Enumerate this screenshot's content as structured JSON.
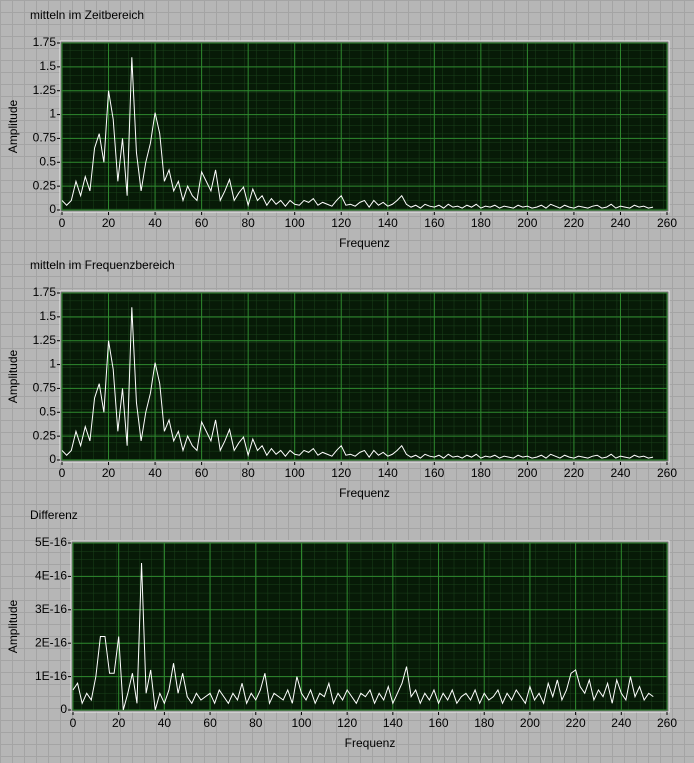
{
  "chart_data": [
    {
      "type": "line",
      "title": "mitteln im Zeitbereich",
      "x_label": "Frequenz",
      "y_label": "Amplitude",
      "color": "#ffffff",
      "grid": true,
      "x": [
        0,
        2,
        4,
        6,
        8,
        10,
        12,
        14,
        16,
        18,
        20,
        22,
        24,
        26,
        28,
        30,
        32,
        34,
        36,
        38,
        40,
        42,
        44,
        46,
        48,
        50,
        52,
        54,
        56,
        58,
        60,
        62,
        64,
        66,
        68,
        70,
        72,
        74,
        76,
        78,
        80,
        82,
        84,
        86,
        88,
        90,
        92,
        94,
        96,
        98,
        100,
        102,
        104,
        106,
        108,
        110,
        112,
        114,
        116,
        118,
        120,
        122,
        124,
        126,
        128,
        130,
        132,
        134,
        136,
        138,
        140,
        142,
        144,
        146,
        148,
        150,
        152,
        154,
        156,
        158,
        160,
        162,
        164,
        166,
        168,
        170,
        172,
        174,
        176,
        178,
        180,
        182,
        184,
        186,
        188,
        190,
        192,
        194,
        196,
        198,
        200,
        202,
        204,
        206,
        208,
        210,
        212,
        214,
        216,
        218,
        220,
        222,
        224,
        226,
        228,
        230,
        232,
        234,
        236,
        238,
        240,
        242,
        244,
        246,
        248,
        250,
        252,
        254
      ],
      "values": [
        0.1,
        0.05,
        0.1,
        0.3,
        0.15,
        0.35,
        0.2,
        0.65,
        0.8,
        0.5,
        1.25,
        0.95,
        0.3,
        0.75,
        0.15,
        1.6,
        0.6,
        0.2,
        0.5,
        0.7,
        1.02,
        0.8,
        0.3,
        0.42,
        0.2,
        0.3,
        0.1,
        0.25,
        0.15,
        0.1,
        0.4,
        0.3,
        0.2,
        0.42,
        0.1,
        0.2,
        0.32,
        0.1,
        0.18,
        0.24,
        0.05,
        0.22,
        0.1,
        0.15,
        0.05,
        0.12,
        0.06,
        0.1,
        0.04,
        0.1,
        0.06,
        0.05,
        0.1,
        0.08,
        0.12,
        0.05,
        0.08,
        0.06,
        0.04,
        0.1,
        0.15,
        0.05,
        0.06,
        0.04,
        0.08,
        0.1,
        0.03,
        0.1,
        0.05,
        0.08,
        0.04,
        0.06,
        0.1,
        0.15,
        0.06,
        0.03,
        0.05,
        0.02,
        0.06,
        0.04,
        0.03,
        0.05,
        0.02,
        0.06,
        0.03,
        0.04,
        0.02,
        0.05,
        0.03,
        0.06,
        0.02,
        0.04,
        0.03,
        0.05,
        0.02,
        0.04,
        0.03,
        0.02,
        0.05,
        0.03,
        0.04,
        0.02,
        0.03,
        0.05,
        0.02,
        0.06,
        0.04,
        0.02,
        0.05,
        0.03,
        0.02,
        0.04,
        0.03,
        0.02,
        0.04,
        0.05,
        0.02,
        0.03,
        0.06,
        0.02,
        0.04,
        0.03,
        0.02,
        0.05,
        0.03,
        0.04,
        0.02,
        0.03
      ],
      "xlim": [
        0,
        260
      ],
      "xticks": [
        0,
        20,
        40,
        60,
        80,
        100,
        120,
        140,
        160,
        180,
        200,
        220,
        240,
        260
      ],
      "ylim": [
        0,
        1.75
      ],
      "yticks": [
        0,
        0.25,
        0.5,
        0.75,
        1,
        1.25,
        1.5,
        1.75
      ]
    },
    {
      "type": "line",
      "title": "mitteln im Frequenzbereich",
      "x_label": "Frequenz",
      "y_label": "Amplitude",
      "color": "#ffffff",
      "grid": true,
      "x": [
        0,
        2,
        4,
        6,
        8,
        10,
        12,
        14,
        16,
        18,
        20,
        22,
        24,
        26,
        28,
        30,
        32,
        34,
        36,
        38,
        40,
        42,
        44,
        46,
        48,
        50,
        52,
        54,
        56,
        58,
        60,
        62,
        64,
        66,
        68,
        70,
        72,
        74,
        76,
        78,
        80,
        82,
        84,
        86,
        88,
        90,
        92,
        94,
        96,
        98,
        100,
        102,
        104,
        106,
        108,
        110,
        112,
        114,
        116,
        118,
        120,
        122,
        124,
        126,
        128,
        130,
        132,
        134,
        136,
        138,
        140,
        142,
        144,
        146,
        148,
        150,
        152,
        154,
        156,
        158,
        160,
        162,
        164,
        166,
        168,
        170,
        172,
        174,
        176,
        178,
        180,
        182,
        184,
        186,
        188,
        190,
        192,
        194,
        196,
        198,
        200,
        202,
        204,
        206,
        208,
        210,
        212,
        214,
        216,
        218,
        220,
        222,
        224,
        226,
        228,
        230,
        232,
        234,
        236,
        238,
        240,
        242,
        244,
        246,
        248,
        250,
        252,
        254
      ],
      "values": [
        0.1,
        0.05,
        0.1,
        0.3,
        0.15,
        0.35,
        0.2,
        0.65,
        0.8,
        0.5,
        1.25,
        0.95,
        0.3,
        0.75,
        0.15,
        1.6,
        0.6,
        0.2,
        0.5,
        0.7,
        1.02,
        0.8,
        0.3,
        0.42,
        0.2,
        0.3,
        0.1,
        0.25,
        0.15,
        0.1,
        0.4,
        0.3,
        0.2,
        0.42,
        0.1,
        0.2,
        0.32,
        0.1,
        0.18,
        0.24,
        0.05,
        0.22,
        0.1,
        0.15,
        0.05,
        0.12,
        0.06,
        0.1,
        0.04,
        0.1,
        0.06,
        0.05,
        0.1,
        0.08,
        0.12,
        0.05,
        0.08,
        0.06,
        0.04,
        0.1,
        0.15,
        0.05,
        0.06,
        0.04,
        0.08,
        0.1,
        0.03,
        0.1,
        0.05,
        0.08,
        0.04,
        0.06,
        0.1,
        0.15,
        0.06,
        0.03,
        0.05,
        0.02,
        0.06,
        0.04,
        0.03,
        0.05,
        0.02,
        0.06,
        0.03,
        0.04,
        0.02,
        0.05,
        0.03,
        0.06,
        0.02,
        0.04,
        0.03,
        0.05,
        0.02,
        0.04,
        0.03,
        0.02,
        0.05,
        0.03,
        0.04,
        0.02,
        0.03,
        0.05,
        0.02,
        0.06,
        0.04,
        0.02,
        0.05,
        0.03,
        0.02,
        0.04,
        0.03,
        0.02,
        0.04,
        0.05,
        0.02,
        0.03,
        0.06,
        0.02,
        0.04,
        0.03,
        0.02,
        0.05,
        0.03,
        0.04,
        0.02,
        0.03
      ],
      "xlim": [
        0,
        260
      ],
      "xticks": [
        0,
        20,
        40,
        60,
        80,
        100,
        120,
        140,
        160,
        180,
        200,
        220,
        240,
        260
      ],
      "ylim": [
        0,
        1.75
      ],
      "yticks": [
        0,
        0.25,
        0.5,
        0.75,
        1,
        1.25,
        1.5,
        1.75
      ]
    },
    {
      "type": "line",
      "title": "Differenz",
      "x_label": "Frequenz",
      "y_label": "Amplitude",
      "color": "#ffffff",
      "grid": true,
      "x": [
        0,
        2,
        4,
        6,
        8,
        10,
        12,
        14,
        16,
        18,
        20,
        22,
        24,
        26,
        28,
        30,
        32,
        34,
        36,
        38,
        40,
        42,
        44,
        46,
        48,
        50,
        52,
        54,
        56,
        58,
        60,
        62,
        64,
        66,
        68,
        70,
        72,
        74,
        76,
        78,
        80,
        82,
        84,
        86,
        88,
        90,
        92,
        94,
        96,
        98,
        100,
        102,
        104,
        106,
        108,
        110,
        112,
        114,
        116,
        118,
        120,
        122,
        124,
        126,
        128,
        130,
        132,
        134,
        136,
        138,
        140,
        142,
        144,
        146,
        148,
        150,
        152,
        154,
        156,
        158,
        160,
        162,
        164,
        166,
        168,
        170,
        172,
        174,
        176,
        178,
        180,
        182,
        184,
        186,
        188,
        190,
        192,
        194,
        196,
        198,
        200,
        202,
        204,
        206,
        208,
        210,
        212,
        214,
        216,
        218,
        220,
        222,
        224,
        226,
        228,
        230,
        232,
        234,
        236,
        238,
        240,
        242,
        244,
        246,
        248,
        250,
        252,
        254
      ],
      "values": [
        6e-17,
        8e-17,
        2e-17,
        5e-17,
        3e-17,
        1e-16,
        2.2e-16,
        2.2e-16,
        1.1e-16,
        1.1e-16,
        2.2e-16,
        0,
        5e-17,
        1.1e-16,
        2e-17,
        4.4e-16,
        5e-17,
        1.2e-16,
        0,
        5e-17,
        2e-17,
        6e-17,
        1.4e-16,
        5e-17,
        1.1e-16,
        4e-17,
        2e-17,
        5e-17,
        3e-17,
        4e-17,
        5e-17,
        2e-17,
        6e-17,
        4e-17,
        2e-17,
        5e-17,
        3e-17,
        8e-17,
        2e-17,
        5e-17,
        3e-17,
        6e-17,
        1.1e-16,
        2e-17,
        5e-17,
        4e-17,
        3e-17,
        6e-17,
        2e-17,
        1e-16,
        5e-17,
        3e-17,
        6e-17,
        2e-17,
        5e-17,
        4e-17,
        8e-17,
        2e-17,
        5e-17,
        3e-17,
        6e-17,
        4e-17,
        2e-17,
        5e-17,
        4e-17,
        6e-17,
        2e-17,
        5e-17,
        3e-17,
        7e-17,
        2e-17,
        5e-17,
        8e-17,
        1.3e-16,
        4e-17,
        6e-17,
        2e-17,
        5e-17,
        3e-17,
        6e-17,
        2e-17,
        5e-17,
        3e-17,
        6e-17,
        2e-17,
        4e-17,
        5e-17,
        3e-17,
        6e-17,
        2e-17,
        5e-17,
        3e-17,
        4e-17,
        6e-17,
        2e-17,
        5e-17,
        3e-17,
        6e-17,
        4e-17,
        2e-17,
        7e-17,
        3e-17,
        5e-17,
        2e-17,
        8e-17,
        4e-17,
        9e-17,
        3e-17,
        6e-17,
        1.1e-16,
        1.2e-16,
        7e-17,
        5e-17,
        9e-17,
        3e-17,
        6e-17,
        4e-17,
        8e-17,
        2e-17,
        9e-17,
        5e-17,
        3e-17,
        1e-16,
        4e-17,
        7e-17,
        3e-17,
        5e-17,
        4e-17
      ],
      "xlim": [
        0,
        260
      ],
      "xticks": [
        0,
        20,
        40,
        60,
        80,
        100,
        120,
        140,
        160,
        180,
        200,
        220,
        240,
        260
      ],
      "ylim": [
        0,
        5e-16
      ],
      "yticks": [
        0,
        {
          "value": 1e-16,
          "label": "1E-16"
        },
        {
          "value": 2e-16,
          "label": "2E-16"
        },
        {
          "value": 3e-16,
          "label": "3E-16"
        },
        {
          "value": 4e-16,
          "label": "4E-16"
        },
        {
          "value": 5e-16,
          "label": "5E-16"
        }
      ]
    }
  ]
}
